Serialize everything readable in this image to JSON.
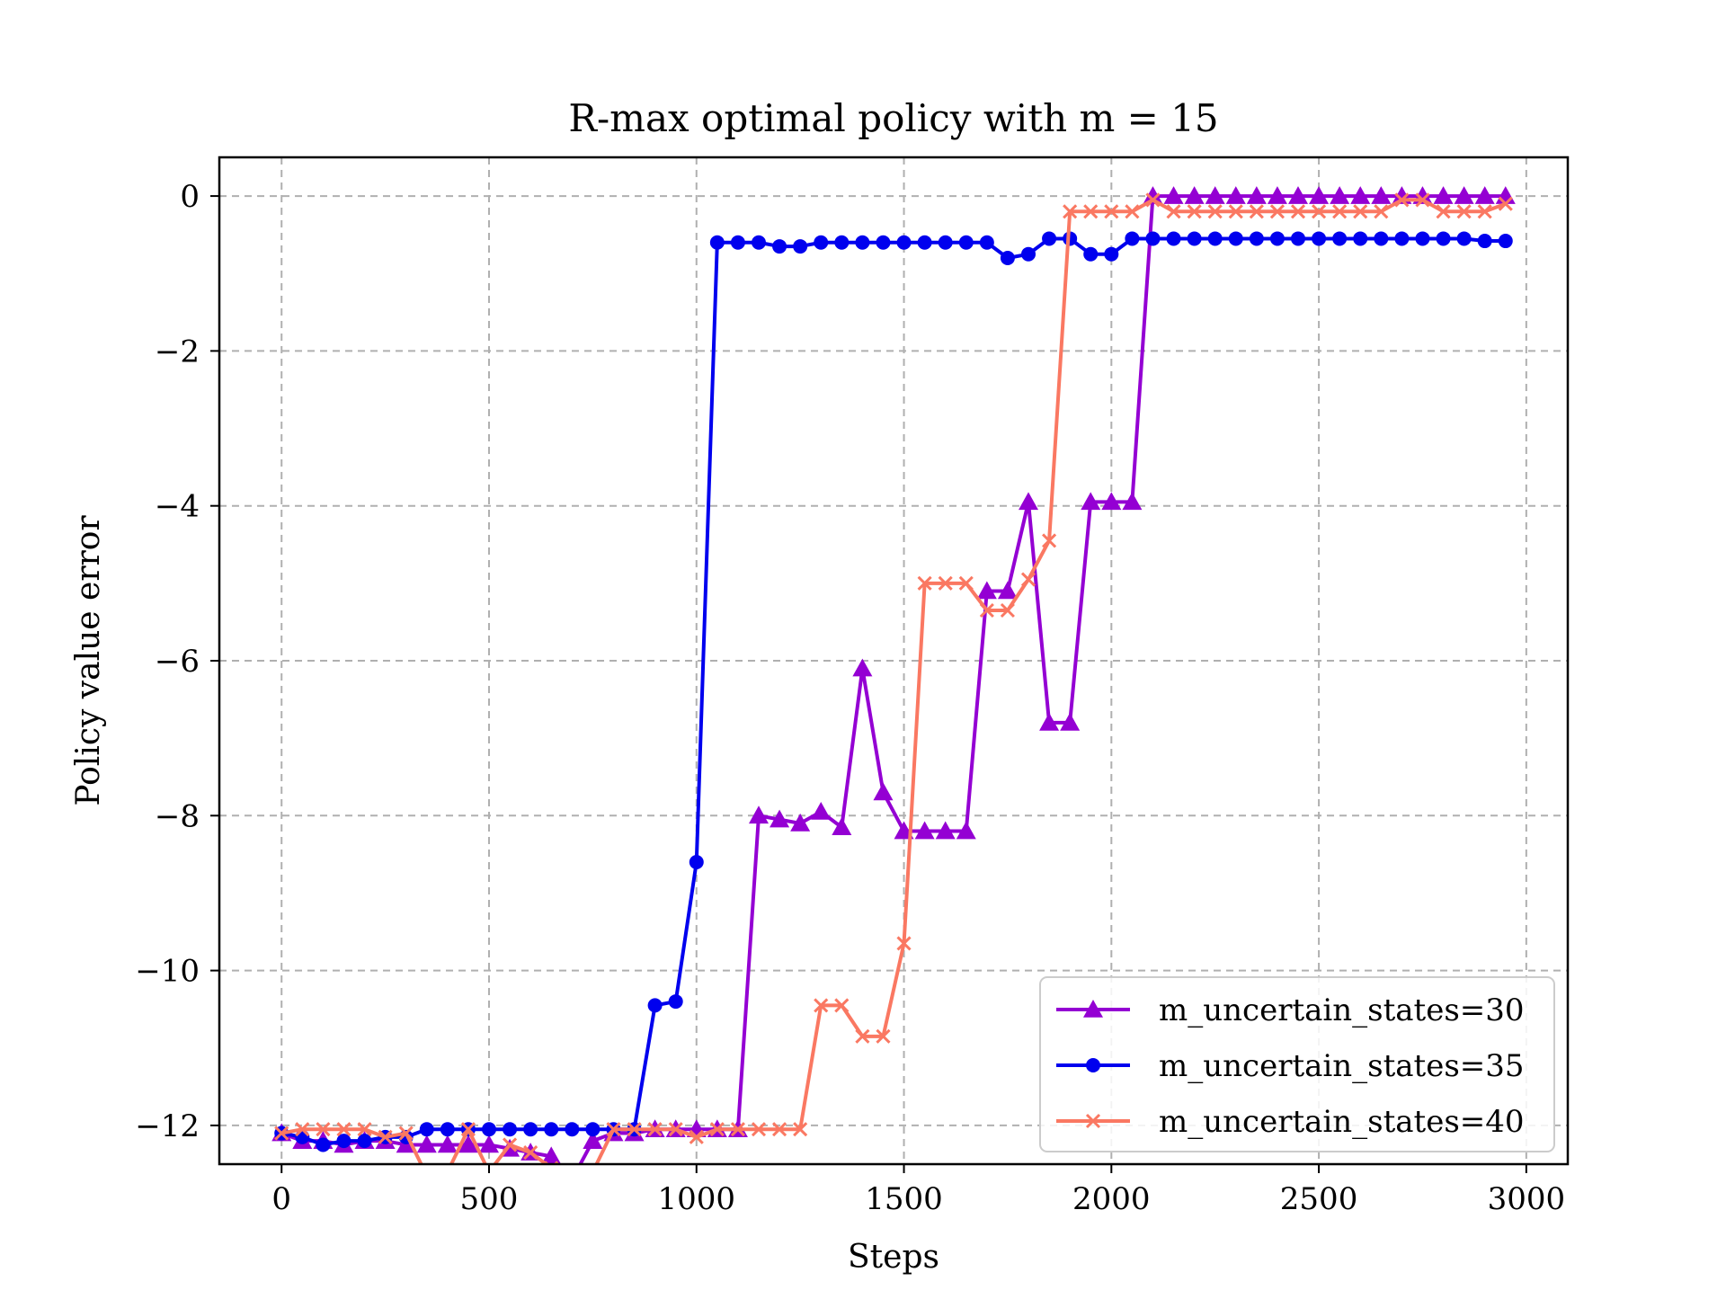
{
  "chart_data": {
    "type": "line",
    "title": "R-max optimal policy with m = 15",
    "xlabel": "Steps",
    "ylabel": "Policy value error",
    "xlim": [
      -150,
      3100
    ],
    "ylim": [
      -12.5,
      0.5
    ],
    "xticks": [
      0,
      500,
      1000,
      1500,
      2000,
      2500,
      3000
    ],
    "yticks": [
      0,
      -2,
      -4,
      -6,
      -8,
      -10,
      -12
    ],
    "xtick_labels": [
      "0",
      "500",
      "1000",
      "1500",
      "2000",
      "2500",
      "3000"
    ],
    "ytick_labels": [
      "0",
      "−2",
      "−4",
      "−6",
      "−8",
      "−10",
      "−12"
    ],
    "grid": true,
    "legend_position": "lower-right",
    "x": [
      0,
      50,
      100,
      150,
      200,
      250,
      300,
      350,
      400,
      450,
      500,
      550,
      600,
      650,
      700,
      750,
      800,
      850,
      900,
      950,
      1000,
      1050,
      1100,
      1150,
      1200,
      1250,
      1300,
      1350,
      1400,
      1450,
      1500,
      1550,
      1600,
      1650,
      1700,
      1750,
      1800,
      1850,
      1900,
      1950,
      2000,
      2050,
      2100,
      2150,
      2200,
      2250,
      2300,
      2350,
      2400,
      2450,
      2500,
      2550,
      2600,
      2650,
      2700,
      2750,
      2800,
      2850,
      2900,
      2950
    ],
    "series": [
      {
        "name": "m_uncertain_states=30",
        "color": "#9400d3",
        "marker": "triangle",
        "values": [
          -12.1,
          -12.2,
          -12.2,
          -12.25,
          -12.2,
          -12.2,
          -12.25,
          -12.25,
          -12.25,
          -12.25,
          -12.25,
          -12.3,
          -12.35,
          -12.4,
          -12.7,
          -12.2,
          -12.1,
          -12.1,
          -12.05,
          -12.05,
          -12.05,
          -12.05,
          -12.05,
          -8.0,
          -8.05,
          -8.1,
          -7.95,
          -8.15,
          -6.1,
          -7.7,
          -8.2,
          -8.2,
          -8.2,
          -8.2,
          -5.1,
          -5.1,
          -3.95,
          -6.8,
          -6.8,
          -3.95,
          -3.95,
          -3.95,
          0.0,
          0.0,
          0.0,
          0.0,
          0.0,
          0.0,
          0.0,
          0.0,
          0.0,
          0.0,
          0.0,
          0.0,
          0.0,
          0.0,
          0.0,
          0.0,
          0.0,
          0.0
        ]
      },
      {
        "name": "m_uncertain_states=35",
        "color": "#0000ee",
        "marker": "circle",
        "values": [
          -12.1,
          -12.15,
          -12.25,
          -12.2,
          -12.2,
          -12.15,
          -12.15,
          -12.05,
          -12.05,
          -12.05,
          -12.05,
          -12.05,
          -12.05,
          -12.05,
          -12.05,
          -12.05,
          -12.05,
          -12.05,
          -10.45,
          -10.4,
          -8.6,
          -0.6,
          -0.6,
          -0.6,
          -0.65,
          -0.65,
          -0.6,
          -0.6,
          -0.6,
          -0.6,
          -0.6,
          -0.6,
          -0.6,
          -0.6,
          -0.6,
          -0.8,
          -0.75,
          -0.55,
          -0.55,
          -0.75,
          -0.75,
          -0.55,
          -0.55,
          -0.55,
          -0.55,
          -0.55,
          -0.55,
          -0.55,
          -0.55,
          -0.55,
          -0.55,
          -0.55,
          -0.55,
          -0.55,
          -0.55,
          -0.55,
          -0.55,
          -0.55,
          -0.58,
          -0.58
        ]
      },
      {
        "name": "m_uncertain_states=40",
        "color": "#fa7862",
        "marker": "x",
        "values": [
          -12.1,
          -12.05,
          -12.05,
          -12.05,
          -12.05,
          -12.15,
          -12.1,
          -12.65,
          -12.6,
          -12.05,
          -12.6,
          -12.25,
          -12.35,
          -12.55,
          -12.7,
          -12.6,
          -12.05,
          -12.05,
          -12.05,
          -12.05,
          -12.15,
          -12.05,
          -12.05,
          -12.05,
          -12.05,
          -12.05,
          -10.45,
          -10.45,
          -10.85,
          -10.85,
          -9.65,
          -5.0,
          -5.0,
          -5.0,
          -5.35,
          -5.35,
          -4.95,
          -4.45,
          -0.2,
          -0.2,
          -0.2,
          -0.2,
          -0.05,
          -0.2,
          -0.2,
          -0.2,
          -0.2,
          -0.2,
          -0.2,
          -0.2,
          -0.2,
          -0.2,
          -0.2,
          -0.2,
          -0.05,
          -0.05,
          -0.2,
          -0.2,
          -0.2,
          -0.1
        ]
      }
    ]
  }
}
